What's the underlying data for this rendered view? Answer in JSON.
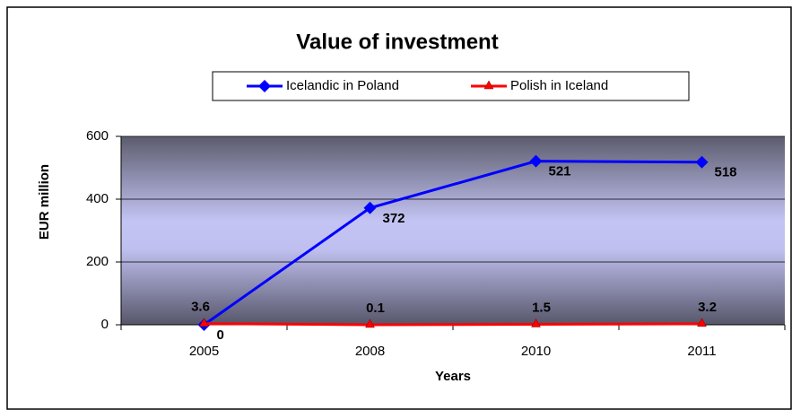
{
  "chart_data": {
    "type": "line",
    "title": "Value of investment",
    "categories": [
      "2005",
      "2008",
      "2010",
      "2011"
    ],
    "series": [
      {
        "name": "Icelandic in Poland",
        "color": "#0000ff",
        "marker": "diamond",
        "values": [
          0,
          372,
          521,
          518
        ]
      },
      {
        "name": "Polish in Iceland",
        "color": "#ff0000",
        "marker": "triangle",
        "values": [
          3.6,
          0.1,
          1.5,
          3.2
        ]
      }
    ],
    "ylim": [
      0,
      600
    ],
    "yticks": [
      0,
      200,
      400,
      600
    ],
    "grid": true,
    "xlabel": "Years",
    "ylabel": "EUR million",
    "legend": "top"
  }
}
